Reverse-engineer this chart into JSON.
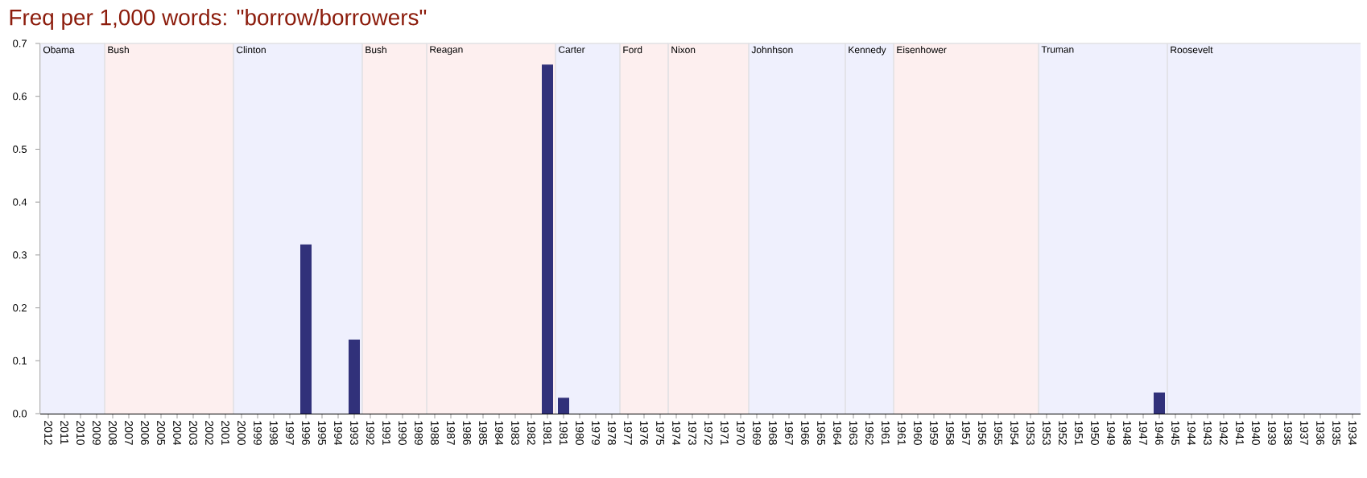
{
  "chart_data": {
    "type": "bar",
    "title": "Freq per 1,000 words: \"borrow/borrowers\"",
    "categories": [
      "2012",
      "2011",
      "2010",
      "2009",
      "2008",
      "2007",
      "2006",
      "2005",
      "2004",
      "2003",
      "2002",
      "2001",
      "2000",
      "1999",
      "1998",
      "1997",
      "1996",
      "1995",
      "1994",
      "1993",
      "1992",
      "1991",
      "1990",
      "1989",
      "1988",
      "1987",
      "1986",
      "1985",
      "1984",
      "1983",
      "1982",
      "1981",
      "1981",
      "1980",
      "1979",
      "1978",
      "1977",
      "1976",
      "1975",
      "1974",
      "1973",
      "1972",
      "1971",
      "1970",
      "1969",
      "1968",
      "1967",
      "1966",
      "1965",
      "1964",
      "1963",
      "1962",
      "1961",
      "1961",
      "1960",
      "1959",
      "1958",
      "1957",
      "1956",
      "1955",
      "1954",
      "1953",
      "1953",
      "1952",
      "1951",
      "1950",
      "1949",
      "1948",
      "1947",
      "1946",
      "1945",
      "1944",
      "1943",
      "1942",
      "1941",
      "1940",
      "1939",
      "1938",
      "1937",
      "1936",
      "1935",
      "1934"
    ],
    "values": [
      0,
      0,
      0,
      0,
      0,
      0,
      0,
      0,
      0,
      0,
      0,
      0,
      0,
      0,
      0,
      0,
      0.32,
      0,
      0,
      0.14,
      0,
      0,
      0,
      0,
      0,
      0,
      0,
      0,
      0,
      0,
      0,
      0.66,
      0.03,
      0,
      0,
      0,
      0,
      0,
      0,
      0,
      0,
      0,
      0,
      0,
      0,
      0,
      0,
      0,
      0,
      0,
      0,
      0,
      0,
      0,
      0,
      0,
      0,
      0,
      0,
      0,
      0,
      0,
      0,
      0,
      0,
      0,
      0,
      0,
      0,
      0.04,
      0,
      0,
      0,
      0,
      0,
      0,
      0,
      0,
      0,
      0,
      0,
      0
    ],
    "color": "#31317a",
    "ylim": [
      0,
      0.7
    ],
    "yticks": [
      {
        "value": 0,
        "label": "0.0"
      },
      {
        "value": 0.1,
        "label": "0.1"
      },
      {
        "value": 0.2,
        "label": "0.2"
      },
      {
        "value": 0.3,
        "label": "0.3"
      },
      {
        "value": 0.4,
        "label": "0.4"
      },
      {
        "value": 0.5,
        "label": "0.5"
      },
      {
        "value": 0.6,
        "label": "0.6"
      },
      {
        "value": 0.7,
        "label": "0.7"
      }
    ],
    "bands": [
      {
        "axis": "x",
        "from": "2012",
        "to": "2009",
        "label": "Obama",
        "color": "#eff0fd"
      },
      {
        "axis": "x",
        "from": "2008",
        "to": "2001",
        "label": "Bush",
        "color": "#fdefef"
      },
      {
        "axis": "x",
        "from": "2000",
        "to": "1993",
        "label": "Clinton",
        "color": "#eff0fd"
      },
      {
        "axis": "x",
        "from": "1992",
        "to": "1989",
        "label": "Bush",
        "color": "#fdefef"
      },
      {
        "axis": "x",
        "from": "1988",
        "to": "1981",
        "label": "Reagan",
        "color": "#fdefef"
      },
      {
        "axis": "x",
        "from": "1981",
        "to": "1978",
        "label": "Carter",
        "color": "#eff0fd"
      },
      {
        "axis": "x",
        "from": "1977",
        "to": "1975",
        "label": "Ford",
        "color": "#fdefef"
      },
      {
        "axis": "x",
        "from": "1974",
        "to": "1970",
        "label": "Nixon",
        "color": "#fdefef"
      },
      {
        "axis": "x",
        "from": "1969",
        "to": "1964",
        "label": "Johnhson",
        "color": "#eff0fd"
      },
      {
        "axis": "x",
        "from": "1963",
        "to": "1961",
        "label": "Kennedy",
        "color": "#eff0fd"
      },
      {
        "axis": "x",
        "from": "1961",
        "to": "1953",
        "label": "Eisenhower",
        "color": "#fdefef"
      },
      {
        "axis": "x",
        "from": "1953",
        "to": "1946",
        "label": "Truman",
        "color": "#eff0fd"
      },
      {
        "axis": "x",
        "from": "1945",
        "to": "1934",
        "label": "Roosevelt",
        "color": "#eff0fd"
      }
    ]
  }
}
